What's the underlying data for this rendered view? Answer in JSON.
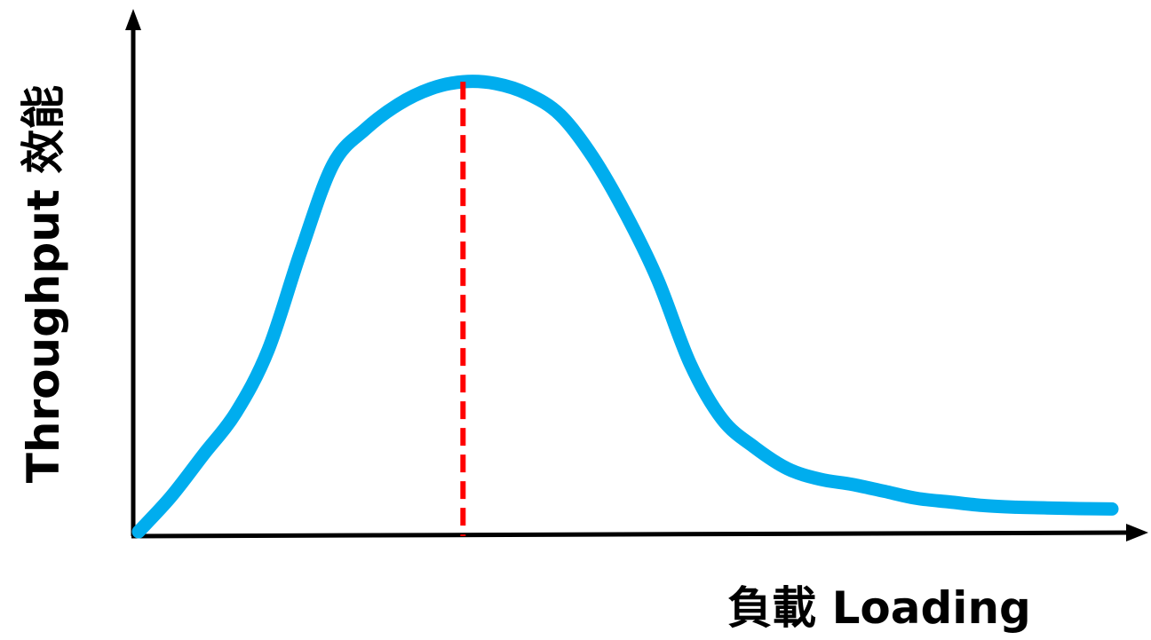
{
  "chart_data": {
    "type": "line",
    "title": "",
    "xlabel": "負載 Loading",
    "ylabel": "Throughput 效能",
    "x": [
      0,
      0.1,
      0.2,
      0.3,
      0.4,
      0.5,
      0.6,
      0.7,
      0.8,
      0.9,
      1.0,
      1.1,
      1.2,
      1.3,
      1.4,
      1.5,
      1.6,
      1.7,
      1.8,
      1.9,
      2.0,
      2.1,
      2.2,
      2.3,
      2.4,
      2.5,
      2.6,
      2.7,
      2.8,
      2.9,
      3.0
    ],
    "series": [
      {
        "values": [
          0.0,
          0.1,
          0.22,
          0.34,
          0.52,
          0.8,
          1.05,
          1.15,
          1.22,
          1.265,
          1.285,
          1.28,
          1.25,
          1.19,
          1.07,
          0.91,
          0.72,
          0.48,
          0.32,
          0.24,
          0.18,
          0.15,
          0.135,
          0.115,
          0.095,
          0.085,
          0.075,
          0.07,
          0.068,
          0.066,
          0.065
        ]
      }
    ],
    "peak_x": 1.0,
    "xlim": [
      0,
      3.2
    ],
    "ylim": [
      0,
      1.45
    ],
    "grid": false,
    "legend": "none",
    "axis_ticks": false,
    "colors": {
      "curve": "#00adee",
      "peak_line": "#ff0000",
      "axis": "#000000"
    }
  }
}
